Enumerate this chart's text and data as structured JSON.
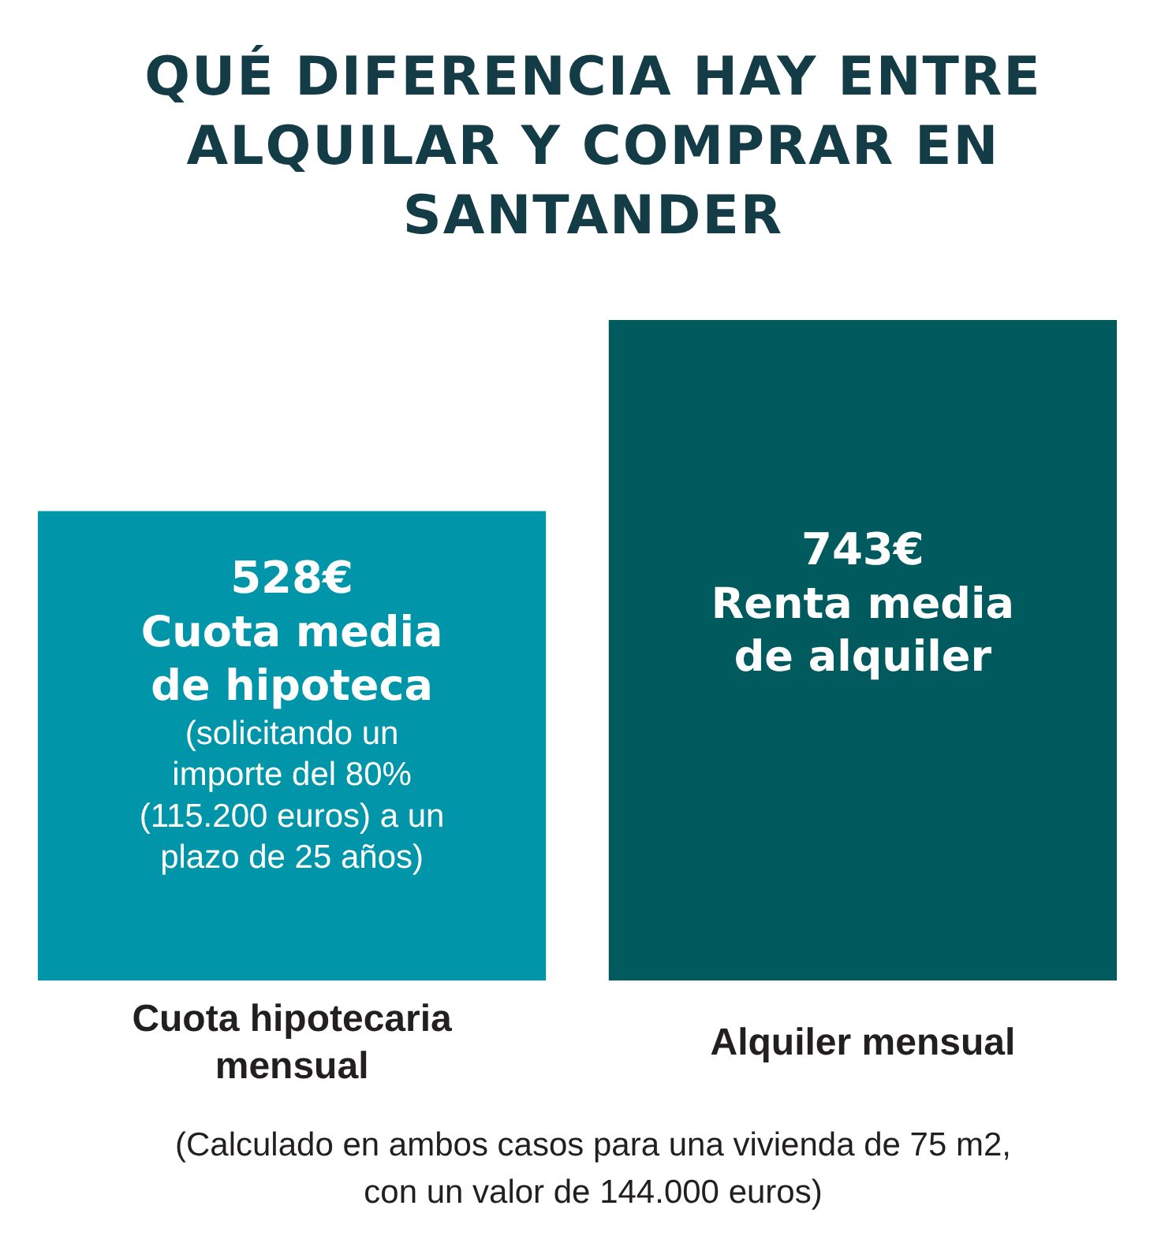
{
  "chart_data": {
    "type": "bar",
    "title": "QUÉ DIFERENCIA HAY ENTRE ALQUILAR Y COMPRAR EN SANTANDER",
    "categories": [
      "Cuota hipotecaria mensual",
      "Alquiler mensual"
    ],
    "values": [
      528,
      743
    ],
    "colors": [
      "#0095a8",
      "#005a5e"
    ],
    "value_labels": [
      "528€",
      "743€"
    ],
    "annotations": [
      "Cuota media de hipoteca",
      "(solicitando un importe del 80% (115.200 euros) a un plazo de 25 años)",
      "Renta media de alquiler",
      "(Calculado en ambos casos para una vivienda de 75 m2, con un valor de 144.000 euros)"
    ]
  }
}
